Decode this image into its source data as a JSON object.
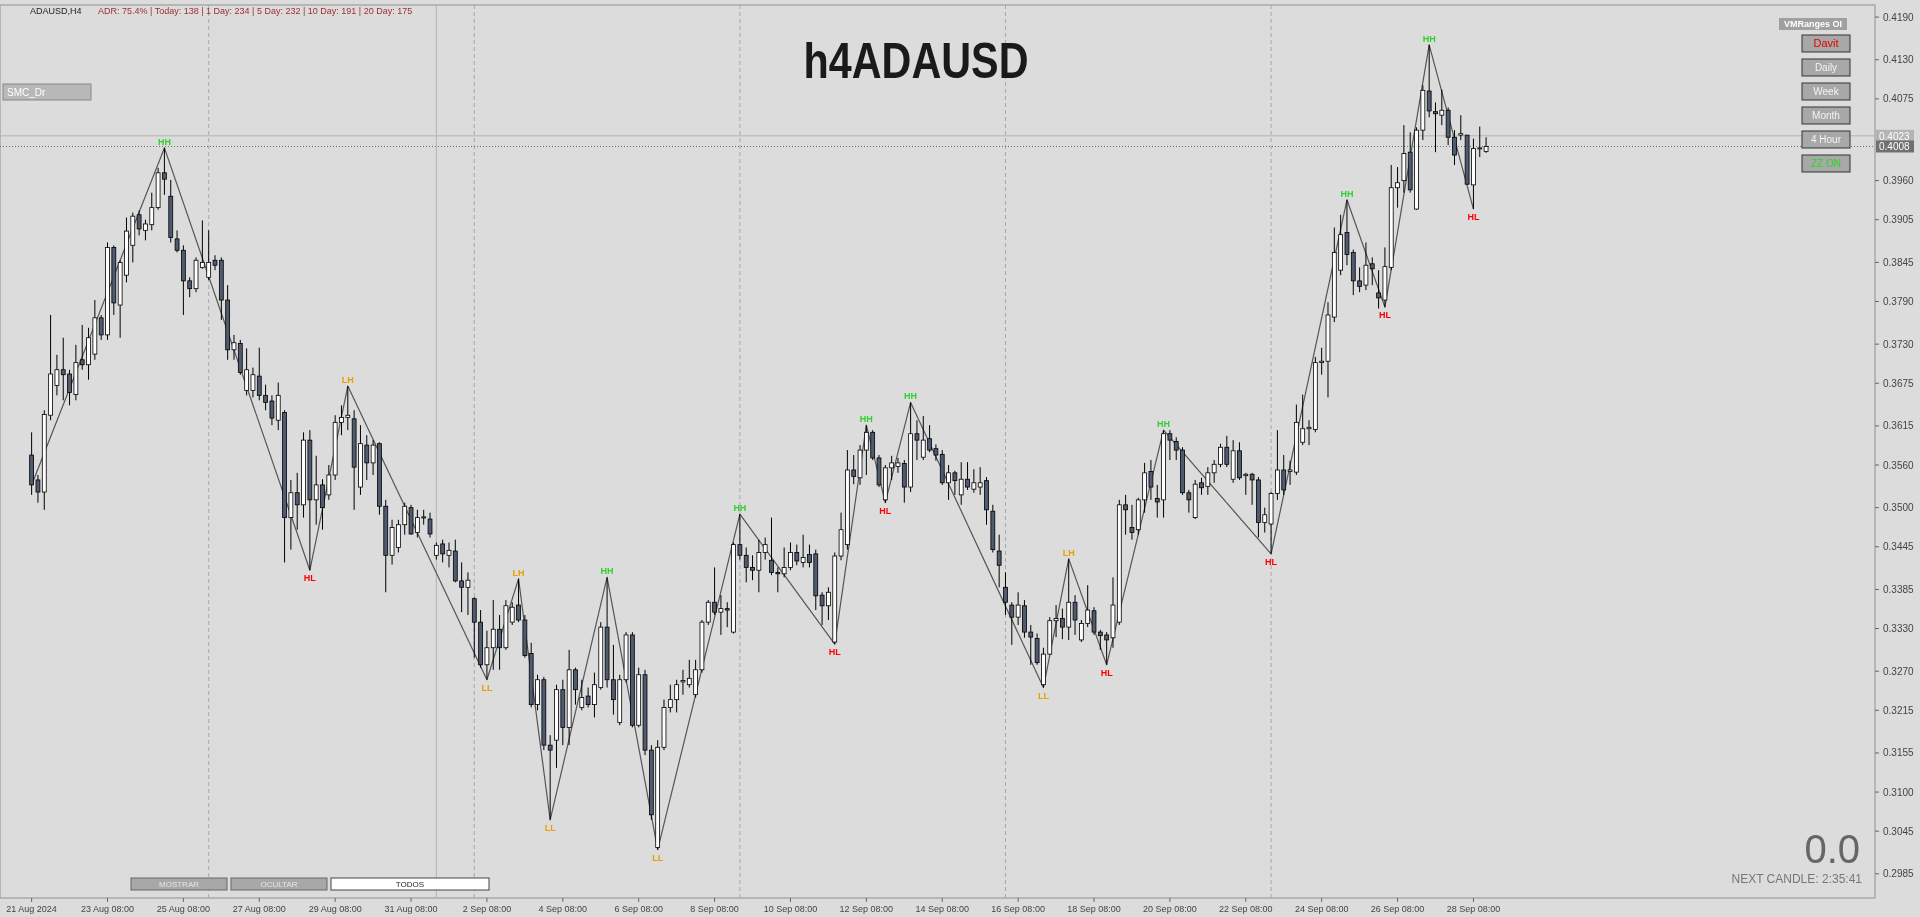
{
  "chart_data": {
    "type": "candlestick",
    "title": "h4ADAUSD",
    "x": [
      "2024-08-21T08:00",
      "2024-08-21T12:00",
      "2024-08-21T16:00",
      "2024-08-21T20:00",
      "2024-08-22T00:00",
      "2024-08-22T04:00",
      "2024-08-22T08:00",
      "2024-08-22T12:00",
      "2024-08-22T16:00",
      "2024-08-22T20:00",
      "2024-08-23T00:00",
      "2024-08-23T04:00",
      "2024-08-23T08:00",
      "2024-08-23T12:00",
      "2024-08-23T16:00",
      "2024-08-23T20:00",
      "2024-08-24T00:00",
      "2024-08-24T04:00",
      "2024-08-24T08:00",
      "2024-08-24T12:00",
      "2024-08-24T16:00",
      "2024-08-24T20:00",
      "2024-08-25T00:00",
      "2024-08-25T04:00",
      "2024-08-25T08:00",
      "2024-08-25T12:00",
      "2024-08-25T16:00",
      "2024-08-25T20:00",
      "2024-08-26T00:00",
      "2024-08-26T04:00",
      "2024-08-26T08:00",
      "2024-08-26T12:00",
      "2024-08-26T16:00",
      "2024-08-26T20:00",
      "2024-08-27T00:00",
      "2024-08-27T04:00",
      "2024-08-27T08:00",
      "2024-08-27T12:00",
      "2024-08-27T16:00",
      "2024-08-27T20:00",
      "2024-08-28T00:00",
      "2024-08-28T04:00",
      "2024-08-28T08:00",
      "2024-08-28T12:00",
      "2024-08-28T16:00",
      "2024-08-28T20:00",
      "2024-08-29T00:00",
      "2024-08-29T04:00",
      "2024-08-29T08:00",
      "2024-08-29T12:00",
      "2024-08-29T16:00",
      "2024-08-29T20:00",
      "2024-08-30T00:00",
      "2024-08-30T04:00",
      "2024-08-30T08:00",
      "2024-08-30T12:00",
      "2024-08-30T16:00",
      "2024-08-30T20:00",
      "2024-08-31T00:00",
      "2024-08-31T04:00",
      "2024-08-31T08:00",
      "2024-08-31T12:00",
      "2024-08-31T16:00",
      "2024-08-31T20:00",
      "2024-09-01T00:00",
      "2024-09-01T04:00",
      "2024-09-01T08:00",
      "2024-09-01T12:00",
      "2024-09-01T16:00",
      "2024-09-01T20:00",
      "2024-09-02T00:00",
      "2024-09-02T04:00",
      "2024-09-02T08:00",
      "2024-09-02T12:00",
      "2024-09-02T16:00",
      "2024-09-02T20:00",
      "2024-09-03T00:00",
      "2024-09-03T04:00",
      "2024-09-03T08:00",
      "2024-09-03T12:00",
      "2024-09-03T16:00",
      "2024-09-03T20:00",
      "2024-09-04T00:00",
      "2024-09-04T04:00",
      "2024-09-04T08:00",
      "2024-09-04T12:00",
      "2024-09-04T16:00",
      "2024-09-04T20:00",
      "2024-09-05T00:00",
      "2024-09-05T04:00",
      "2024-09-05T08:00",
      "2024-09-05T12:00",
      "2024-09-05T16:00",
      "2024-09-05T20:00",
      "2024-09-06T00:00",
      "2024-09-06T04:00",
      "2024-09-06T08:00",
      "2024-09-06T12:00",
      "2024-09-06T16:00",
      "2024-09-06T20:00",
      "2024-09-07T00:00",
      "2024-09-07T04:00",
      "2024-09-07T08:00",
      "2024-09-07T12:00",
      "2024-09-07T16:00",
      "2024-09-07T20:00",
      "2024-09-08T00:00",
      "2024-09-08T04:00",
      "2024-09-08T08:00",
      "2024-09-08T12:00",
      "2024-09-08T16:00",
      "2024-09-08T20:00",
      "2024-09-09T00:00",
      "2024-09-09T04:00",
      "2024-09-09T08:00",
      "2024-09-09T12:00",
      "2024-09-09T16:00",
      "2024-09-09T20:00",
      "2024-09-10T00:00",
      "2024-09-10T04:00",
      "2024-09-10T08:00",
      "2024-09-10T12:00",
      "2024-09-10T16:00",
      "2024-09-10T20:00",
      "2024-09-11T00:00",
      "2024-09-11T04:00",
      "2024-09-11T08:00",
      "2024-09-11T12:00",
      "2024-09-11T16:00",
      "2024-09-11T20:00",
      "2024-09-12T00:00",
      "2024-09-12T04:00",
      "2024-09-12T08:00",
      "2024-09-12T12:00",
      "2024-09-12T16:00",
      "2024-09-12T20:00",
      "2024-09-13T00:00",
      "2024-09-13T04:00",
      "2024-09-13T08:00",
      "2024-09-13T12:00",
      "2024-09-13T16:00",
      "2024-09-13T20:00",
      "2024-09-14T00:00",
      "2024-09-14T04:00",
      "2024-09-14T08:00",
      "2024-09-14T12:00",
      "2024-09-14T16:00",
      "2024-09-14T20:00",
      "2024-09-15T00:00",
      "2024-09-15T04:00",
      "2024-09-15T08:00",
      "2024-09-15T12:00",
      "2024-09-15T16:00",
      "2024-09-15T20:00",
      "2024-09-16T00:00",
      "2024-09-16T04:00",
      "2024-09-16T08:00",
      "2024-09-16T12:00",
      "2024-09-16T16:00",
      "2024-09-16T20:00",
      "2024-09-17T00:00",
      "2024-09-17T04:00",
      "2024-09-17T08:00",
      "2024-09-17T12:00",
      "2024-09-17T16:00",
      "2024-09-17T20:00",
      "2024-09-18T00:00",
      "2024-09-18T04:00",
      "2024-09-18T08:00",
      "2024-09-18T12:00",
      "2024-09-18T16:00",
      "2024-09-18T20:00",
      "2024-09-19T00:00",
      "2024-09-19T04:00",
      "2024-09-19T08:00",
      "2024-09-19T12:00",
      "2024-09-19T16:00",
      "2024-09-19T20:00",
      "2024-09-20T00:00",
      "2024-09-20T04:00",
      "2024-09-20T08:00",
      "2024-09-20T12:00",
      "2024-09-20T16:00",
      "2024-09-20T20:00",
      "2024-09-21T00:00",
      "2024-09-21T04:00",
      "2024-09-21T08:00",
      "2024-09-21T12:00",
      "2024-09-21T16:00",
      "2024-09-21T20:00",
      "2024-09-22T00:00",
      "2024-09-22T04:00",
      "2024-09-22T08:00",
      "2024-09-22T12:00",
      "2024-09-22T16:00",
      "2024-09-22T20:00",
      "2024-09-23T00:00",
      "2024-09-23T04:00",
      "2024-09-23T08:00",
      "2024-09-23T12:00",
      "2024-09-23T16:00",
      "2024-09-23T20:00",
      "2024-09-24T00:00",
      "2024-09-24T04:00",
      "2024-09-24T08:00",
      "2024-09-24T12:00",
      "2024-09-24T16:00",
      "2024-09-24T20:00",
      "2024-09-25T00:00",
      "2024-09-25T04:00",
      "2024-09-25T08:00",
      "2024-09-25T12:00",
      "2024-09-25T16:00",
      "2024-09-25T20:00",
      "2024-09-26T00:00",
      "2024-09-26T04:00",
      "2024-09-26T08:00",
      "2024-09-26T12:00",
      "2024-09-26T16:00",
      "2024-09-26T20:00",
      "2024-09-27T00:00",
      "2024-09-27T04:00",
      "2024-09-27T08:00",
      "2024-09-27T12:00",
      "2024-09-27T16:00",
      "2024-09-27T20:00",
      "2024-09-28T00:00",
      "2024-09-28T04:00",
      "2024-09-28T08:00",
      "2024-09-28T12:00",
      "2024-09-28T16:00"
    ],
    "ohlc": [
      [
        0.3574,
        0.3606,
        0.3518,
        0.3532
      ],
      [
        0.3539,
        0.3546,
        0.3507,
        0.3522
      ],
      [
        0.3522,
        0.3637,
        0.3497,
        0.3631
      ],
      [
        0.363,
        0.3771,
        0.3623,
        0.3688
      ],
      [
        0.3672,
        0.3715,
        0.3658,
        0.3694
      ],
      [
        0.3694,
        0.3739,
        0.3651,
        0.3687
      ],
      [
        0.3688,
        0.3694,
        0.3644,
        0.3662
      ],
      [
        0.3659,
        0.3729,
        0.3651,
        0.3704
      ],
      [
        0.3708,
        0.3757,
        0.3694,
        0.3701
      ],
      [
        0.3701,
        0.3753,
        0.368,
        0.3739
      ],
      [
        0.3716,
        0.3792,
        0.3708,
        0.3767
      ],
      [
        0.3767,
        0.3771,
        0.3736,
        0.3743
      ],
      [
        0.3743,
        0.3873,
        0.3736,
        0.3866
      ],
      [
        0.3866,
        0.3869,
        0.3771,
        0.3788
      ],
      [
        0.3785,
        0.3848,
        0.3739,
        0.3845
      ],
      [
        0.3827,
        0.3908,
        0.3817,
        0.3889
      ],
      [
        0.3869,
        0.3915,
        0.3845,
        0.391
      ],
      [
        0.3912,
        0.3918,
        0.3883,
        0.3892
      ],
      [
        0.389,
        0.3905,
        0.3876,
        0.3899
      ],
      [
        0.3898,
        0.3943,
        0.389,
        0.3922
      ],
      [
        0.3922,
        0.3978,
        0.3919,
        0.3971
      ],
      [
        0.3971,
        0.4006,
        0.394,
        0.3962
      ],
      [
        0.3938,
        0.3961,
        0.3873,
        0.388
      ],
      [
        0.3878,
        0.389,
        0.3859,
        0.3862
      ],
      [
        0.3862,
        0.3869,
        0.3771,
        0.3819
      ],
      [
        0.3819,
        0.3824,
        0.3796,
        0.3808
      ],
      [
        0.3808,
        0.3852,
        0.3803,
        0.3848
      ],
      [
        0.3838,
        0.3904,
        0.3836,
        0.3845
      ],
      [
        0.3824,
        0.389,
        0.382,
        0.3845
      ],
      [
        0.3848,
        0.3855,
        0.3834,
        0.3841
      ],
      [
        0.3848,
        0.3852,
        0.3764,
        0.3792
      ],
      [
        0.3792,
        0.3813,
        0.3708,
        0.3722
      ],
      [
        0.3722,
        0.3743,
        0.3708,
        0.3732
      ],
      [
        0.3731,
        0.3736,
        0.3687,
        0.369
      ],
      [
        0.3665,
        0.3724,
        0.3658,
        0.3694
      ],
      [
        0.3665,
        0.3697,
        0.3655,
        0.3687
      ],
      [
        0.3685,
        0.3725,
        0.3651,
        0.3658
      ],
      [
        0.3658,
        0.3673,
        0.3637,
        0.3648
      ],
      [
        0.365,
        0.3658,
        0.3616,
        0.3626
      ],
      [
        0.3623,
        0.3676,
        0.3609,
        0.3658
      ],
      [
        0.3634,
        0.3637,
        0.3423,
        0.3486
      ],
      [
        0.3486,
        0.3539,
        0.3441,
        0.3521
      ],
      [
        0.3521,
        0.3549,
        0.3469,
        0.3504
      ],
      [
        0.3504,
        0.3606,
        0.3486,
        0.3595
      ],
      [
        0.3595,
        0.3609,
        0.3412,
        0.3511
      ],
      [
        0.3511,
        0.3573,
        0.3476,
        0.3532
      ],
      [
        0.3532,
        0.354,
        0.3469,
        0.35
      ],
      [
        0.3518,
        0.356,
        0.3511,
        0.3546
      ],
      [
        0.3546,
        0.363,
        0.3539,
        0.362
      ],
      [
        0.362,
        0.3644,
        0.3602,
        0.3627
      ],
      [
        0.3627,
        0.3671,
        0.3609,
        0.363
      ],
      [
        0.3625,
        0.3637,
        0.3497,
        0.3557
      ],
      [
        0.3529,
        0.3616,
        0.3518,
        0.359
      ],
      [
        0.3588,
        0.3602,
        0.3539,
        0.3563
      ],
      [
        0.3563,
        0.3595,
        0.3546,
        0.3588
      ],
      [
        0.359,
        0.3592,
        0.349,
        0.3502
      ],
      [
        0.3502,
        0.3511,
        0.3381,
        0.3433
      ],
      [
        0.3433,
        0.3483,
        0.342,
        0.3472
      ],
      [
        0.3444,
        0.3483,
        0.3437,
        0.3476
      ],
      [
        0.3476,
        0.3507,
        0.3462,
        0.3502
      ],
      [
        0.35,
        0.3504,
        0.3462,
        0.3463
      ],
      [
        0.3465,
        0.3497,
        0.3458,
        0.3486
      ],
      [
        0.3486,
        0.3497,
        0.3476,
        0.3487
      ],
      [
        0.3484,
        0.3493,
        0.3458,
        0.3463
      ],
      [
        0.3433,
        0.3451,
        0.3427,
        0.3447
      ],
      [
        0.3449,
        0.3455,
        0.3423,
        0.3435
      ],
      [
        0.3433,
        0.3451,
        0.3416,
        0.344
      ],
      [
        0.3439,
        0.3455,
        0.3395,
        0.3397
      ],
      [
        0.3397,
        0.3423,
        0.3353,
        0.3388
      ],
      [
        0.3388,
        0.3409,
        0.3349,
        0.3398
      ],
      [
        0.3372,
        0.3374,
        0.3289,
        0.3339
      ],
      [
        0.3339,
        0.3356,
        0.3275,
        0.3279
      ],
      [
        0.3279,
        0.3327,
        0.3258,
        0.3303
      ],
      [
        0.3303,
        0.337,
        0.3272,
        0.3329
      ],
      [
        0.3329,
        0.3349,
        0.3272,
        0.3303
      ],
      [
        0.3303,
        0.337,
        0.33,
        0.3362
      ],
      [
        0.3339,
        0.3367,
        0.3335,
        0.336
      ],
      [
        0.3363,
        0.34,
        0.3339,
        0.3342
      ],
      [
        0.3342,
        0.3349,
        0.3289,
        0.3292
      ],
      [
        0.3295,
        0.331,
        0.3219,
        0.3223
      ],
      [
        0.3223,
        0.3265,
        0.3215,
        0.3258
      ],
      [
        0.3258,
        0.3262,
        0.3159,
        0.3166
      ],
      [
        0.3166,
        0.318,
        0.3061,
        0.3159
      ],
      [
        0.3173,
        0.3251,
        0.3134,
        0.3244
      ],
      [
        0.3244,
        0.3258,
        0.3166,
        0.3191
      ],
      [
        0.3191,
        0.33,
        0.3166,
        0.3272
      ],
      [
        0.3272,
        0.3275,
        0.3223,
        0.3244
      ],
      [
        0.3219,
        0.3258,
        0.3215,
        0.3233
      ],
      [
        0.3235,
        0.3247,
        0.3219,
        0.3223
      ],
      [
        0.3223,
        0.3268,
        0.3205,
        0.3251
      ],
      [
        0.3247,
        0.3339,
        0.3244,
        0.3332
      ],
      [
        0.3332,
        0.3402,
        0.3247,
        0.3258
      ],
      [
        0.3258,
        0.3307,
        0.3209,
        0.323
      ],
      [
        0.3198,
        0.3265,
        0.3194,
        0.3258
      ],
      [
        0.3258,
        0.3325,
        0.3254,
        0.3321
      ],
      [
        0.3321,
        0.3325,
        0.3191,
        0.3194
      ],
      [
        0.3194,
        0.3275,
        0.3191,
        0.3265
      ],
      [
        0.3265,
        0.3272,
        0.3152,
        0.3159
      ],
      [
        0.3159,
        0.3166,
        0.3061,
        0.3068
      ],
      [
        0.3022,
        0.3173,
        0.3019,
        0.3163
      ],
      [
        0.3163,
        0.323,
        0.3159,
        0.3219
      ],
      [
        0.3219,
        0.3251,
        0.3212,
        0.323
      ],
      [
        0.323,
        0.3258,
        0.3212,
        0.3251
      ],
      [
        0.3255,
        0.3272,
        0.3237,
        0.3257
      ],
      [
        0.3251,
        0.3286,
        0.3247,
        0.326
      ],
      [
        0.3237,
        0.3286,
        0.3233,
        0.3272
      ],
      [
        0.3272,
        0.3342,
        0.3268,
        0.3339
      ],
      [
        0.3339,
        0.337,
        0.3335,
        0.3367
      ],
      [
        0.3367,
        0.3416,
        0.3349,
        0.3353
      ],
      [
        0.3353,
        0.3377,
        0.3321,
        0.3358
      ],
      [
        0.3358,
        0.3367,
        0.3332,
        0.3356
      ],
      [
        0.3325,
        0.3451,
        0.3323,
        0.3448
      ],
      [
        0.3448,
        0.3491,
        0.3427,
        0.3433
      ],
      [
        0.3433,
        0.3444,
        0.3395,
        0.3416
      ],
      [
        0.3416,
        0.3433,
        0.3398,
        0.3412
      ],
      [
        0.3412,
        0.3455,
        0.3381,
        0.3437
      ],
      [
        0.3437,
        0.3458,
        0.3427,
        0.3448
      ],
      [
        0.3426,
        0.3486,
        0.3405,
        0.3409
      ],
      [
        0.3409,
        0.3416,
        0.3381,
        0.3407
      ],
      [
        0.3407,
        0.3444,
        0.3402,
        0.3416
      ],
      [
        0.3416,
        0.3451,
        0.3412,
        0.3437
      ],
      [
        0.3437,
        0.3448,
        0.3419,
        0.3425
      ],
      [
        0.3423,
        0.3462,
        0.3416,
        0.343
      ],
      [
        0.3434,
        0.3448,
        0.3416,
        0.3423
      ],
      [
        0.3435,
        0.3441,
        0.3356,
        0.3376
      ],
      [
        0.3377,
        0.3381,
        0.3335,
        0.3362
      ],
      [
        0.3362,
        0.3388,
        0.3342,
        0.3381
      ],
      [
        0.3311,
        0.3437,
        0.3308,
        0.3432
      ],
      [
        0.3432,
        0.3493,
        0.3426,
        0.3469
      ],
      [
        0.3448,
        0.3581,
        0.3441,
        0.3553
      ],
      [
        0.3553,
        0.3574,
        0.3533,
        0.3544
      ],
      [
        0.3542,
        0.3588,
        0.3532,
        0.3581
      ],
      [
        0.3581,
        0.3616,
        0.3546,
        0.3606
      ],
      [
        0.3606,
        0.3609,
        0.3567,
        0.357
      ],
      [
        0.357,
        0.3574,
        0.3529,
        0.3532
      ],
      [
        0.3511,
        0.356,
        0.3507,
        0.3556
      ],
      [
        0.3556,
        0.3573,
        0.3539,
        0.3563
      ],
      [
        0.3558,
        0.357,
        0.3549,
        0.3563
      ],
      [
        0.3562,
        0.3567,
        0.3507,
        0.3529
      ],
      [
        0.3529,
        0.3648,
        0.3522,
        0.3604
      ],
      [
        0.3604,
        0.3623,
        0.3567,
        0.3595
      ],
      [
        0.3571,
        0.3629,
        0.3567,
        0.3595
      ],
      [
        0.3597,
        0.3616,
        0.3578,
        0.3581
      ],
      [
        0.3583,
        0.3589,
        0.3566,
        0.3574
      ],
      [
        0.3575,
        0.3581,
        0.3532,
        0.3535
      ],
      [
        0.3535,
        0.356,
        0.3511,
        0.3549
      ],
      [
        0.3549,
        0.3552,
        0.3518,
        0.3538
      ],
      [
        0.3518,
        0.3564,
        0.3504,
        0.354
      ],
      [
        0.354,
        0.3564,
        0.3525,
        0.3529
      ],
      [
        0.3526,
        0.3554,
        0.3521,
        0.3535
      ],
      [
        0.3529,
        0.3557,
        0.3518,
        0.3535
      ],
      [
        0.3538,
        0.3543,
        0.3476,
        0.3497
      ],
      [
        0.3495,
        0.3504,
        0.3437,
        0.3441
      ],
      [
        0.3439,
        0.3462,
        0.3388,
        0.3419
      ],
      [
        0.3388,
        0.3409,
        0.3349,
        0.3367
      ],
      [
        0.3363,
        0.3367,
        0.3307,
        0.3346
      ],
      [
        0.3346,
        0.3381,
        0.3335,
        0.3363
      ],
      [
        0.3362,
        0.337,
        0.3317,
        0.3325
      ],
      [
        0.3325,
        0.3335,
        0.3279,
        0.3318
      ],
      [
        0.3316,
        0.3323,
        0.3279,
        0.3282
      ],
      [
        0.3251,
        0.3303,
        0.3247,
        0.3294
      ],
      [
        0.3294,
        0.3346,
        0.3293,
        0.3341
      ],
      [
        0.3341,
        0.3363,
        0.3318,
        0.3344
      ],
      [
        0.3344,
        0.3358,
        0.3315,
        0.3332
      ],
      [
        0.3332,
        0.3428,
        0.3314,
        0.3367
      ],
      [
        0.3367,
        0.3377,
        0.3321,
        0.3342
      ],
      [
        0.3314,
        0.3342,
        0.3311,
        0.3337
      ],
      [
        0.3337,
        0.3391,
        0.3332,
        0.3356
      ],
      [
        0.3355,
        0.336,
        0.3321,
        0.3325
      ],
      [
        0.3325,
        0.3328,
        0.33,
        0.332
      ],
      [
        0.3321,
        0.3325,
        0.3279,
        0.3314
      ],
      [
        0.3317,
        0.3402,
        0.3303,
        0.3363
      ],
      [
        0.3339,
        0.3511,
        0.3335,
        0.3504
      ],
      [
        0.3504,
        0.3518,
        0.3462,
        0.3497
      ],
      [
        0.3472,
        0.3504,
        0.3455,
        0.3465
      ],
      [
        0.3469,
        0.3514,
        0.3462,
        0.3511
      ],
      [
        0.3511,
        0.3563,
        0.3493,
        0.3549
      ],
      [
        0.3551,
        0.3567,
        0.3511,
        0.3529
      ],
      [
        0.3513,
        0.3532,
        0.3486,
        0.3508
      ],
      [
        0.3511,
        0.3609,
        0.3486,
        0.3604
      ],
      [
        0.3604,
        0.3609,
        0.3567,
        0.3595
      ],
      [
        0.3593,
        0.3599,
        0.3567,
        0.3581
      ],
      [
        0.3581,
        0.3585,
        0.3518,
        0.3521
      ],
      [
        0.3521,
        0.3525,
        0.3493,
        0.3511
      ],
      [
        0.3486,
        0.3539,
        0.3484,
        0.3533
      ],
      [
        0.3535,
        0.3542,
        0.3518,
        0.3528
      ],
      [
        0.353,
        0.3557,
        0.3518,
        0.3549
      ],
      [
        0.3549,
        0.3567,
        0.3535,
        0.3561
      ],
      [
        0.3561,
        0.359,
        0.3557,
        0.3585
      ],
      [
        0.3585,
        0.3601,
        0.3557,
        0.3561
      ],
      [
        0.354,
        0.3595,
        0.3535,
        0.358
      ],
      [
        0.358,
        0.3592,
        0.3539,
        0.3542
      ],
      [
        0.3545,
        0.3549,
        0.3518,
        0.3547
      ],
      [
        0.3547,
        0.3549,
        0.3504,
        0.3539
      ],
      [
        0.3539,
        0.3543,
        0.3458,
        0.3479
      ],
      [
        0.3479,
        0.35,
        0.3465,
        0.349
      ],
      [
        0.3477,
        0.3522,
        0.3435,
        0.352
      ],
      [
        0.352,
        0.3609,
        0.3511,
        0.3553
      ],
      [
        0.3553,
        0.3574,
        0.3518,
        0.3525
      ],
      [
        0.3551,
        0.3566,
        0.3532,
        0.3553
      ],
      [
        0.355,
        0.3645,
        0.3546,
        0.362
      ],
      [
        0.3592,
        0.3659,
        0.3588,
        0.3611
      ],
      [
        0.3611,
        0.3623,
        0.3588,
        0.3613
      ],
      [
        0.361,
        0.3712,
        0.3606,
        0.3704
      ],
      [
        0.3704,
        0.3725,
        0.3687,
        0.3706
      ],
      [
        0.3706,
        0.3789,
        0.3655,
        0.3771
      ],
      [
        0.3768,
        0.3894,
        0.3761,
        0.3859
      ],
      [
        0.3834,
        0.3912,
        0.3827,
        0.3884
      ],
      [
        0.3887,
        0.3933,
        0.3841,
        0.3856
      ],
      [
        0.3859,
        0.3863,
        0.3799,
        0.3819
      ],
      [
        0.3819,
        0.3838,
        0.3803,
        0.3811
      ],
      [
        0.3813,
        0.3873,
        0.3806,
        0.3841
      ],
      [
        0.3843,
        0.3852,
        0.3813,
        0.3836
      ],
      [
        0.3802,
        0.3834,
        0.378,
        0.3795
      ],
      [
        0.3792,
        0.3866,
        0.3782,
        0.3839
      ],
      [
        0.3838,
        0.3982,
        0.3834,
        0.395
      ],
      [
        0.395,
        0.3979,
        0.3922,
        0.3957
      ],
      [
        0.396,
        0.4038,
        0.3943,
        0.3998
      ],
      [
        0.4,
        0.4028,
        0.3943,
        0.3947
      ],
      [
        0.392,
        0.4035,
        0.3919,
        0.4031
      ],
      [
        0.4031,
        0.4094,
        0.4017,
        0.4087
      ],
      [
        0.4086,
        0.4151,
        0.4049,
        0.4058
      ],
      [
        0.4057,
        0.407,
        0.4,
        0.4054
      ],
      [
        0.4052,
        0.4088,
        0.4038,
        0.4059
      ],
      [
        0.4059,
        0.4063,
        0.401,
        0.4021
      ],
      [
        0.4021,
        0.4031,
        0.3982,
        0.3996
      ],
      [
        0.4024,
        0.4052,
        0.4017,
        0.4026
      ],
      [
        0.4024,
        0.4024,
        0.3954,
        0.3955
      ],
      [
        0.3954,
        0.4019,
        0.392,
        0.4005
      ],
      [
        0.4005,
        0.4036,
        0.3993,
        0.4006
      ],
      [
        0.4001,
        0.4021,
        0.3999,
        0.4008
      ]
    ],
    "series": [
      {
        "type": "line",
        "color": "#555555",
        "x": [
          "2024-08-21T08:00",
          "2024-08-24T20:00",
          "2024-08-28T16:00",
          "2024-08-29T16:00",
          "2024-09-02T08:00",
          "2024-09-03T04:00",
          "2024-09-04T00:00",
          "2024-09-05T12:00",
          "2024-09-06T20:00",
          "2024-09-09T00:00",
          "2024-09-11T12:00",
          "2024-09-12T08:00",
          "2024-09-12T20:00",
          "2024-09-13T12:00",
          "2024-09-17T00:00",
          "2024-09-17T16:00",
          "2024-09-18T16:00",
          "2024-09-20T04:00",
          "2024-09-23T00:00",
          "2024-09-25T00:00",
          "2024-09-26T00:00",
          "2024-09-27T04:00",
          "2024-09-28T08:00"
        ],
        "values": [
          0.3532,
          0.4006,
          0.3412,
          0.3671,
          0.3258,
          0.34,
          0.3061,
          0.3402,
          0.3019,
          0.3491,
          0.3308,
          0.3616,
          0.3507,
          0.3648,
          0.3247,
          0.3428,
          0.3279,
          0.3609,
          0.3435,
          0.3933,
          0.3782,
          0.4151,
          0.392
        ]
      }
    ],
    "xlim": [
      "2024-08-20T12:00",
      "2024-10-08T22:00"
    ],
    "xticks": [
      {
        "value": "2024-08-21T08:00",
        "label": "21 Aug 2024"
      },
      {
        "value": "2024-08-23T08:00",
        "label": "23 Aug 08:00"
      },
      {
        "value": "2024-08-25T08:00",
        "label": "25 Aug 08:00"
      },
      {
        "value": "2024-08-27T08:00",
        "label": "27 Aug 08:00"
      },
      {
        "value": "2024-08-29T08:00",
        "label": "29 Aug 08:00"
      },
      {
        "value": "2024-08-31T08:00",
        "label": "31 Aug 08:00"
      },
      {
        "value": "2024-09-02T08:00",
        "label": "2 Sep 08:00"
      },
      {
        "value": "2024-09-04T08:00",
        "label": "4 Sep 08:00"
      },
      {
        "value": "2024-09-06T08:00",
        "label": "6 Sep 08:00"
      },
      {
        "value": "2024-09-08T08:00",
        "label": "8 Sep 08:00"
      },
      {
        "value": "2024-09-10T08:00",
        "label": "10 Sep 08:00"
      },
      {
        "value": "2024-09-12T08:00",
        "label": "12 Sep 08:00"
      },
      {
        "value": "2024-09-14T08:00",
        "label": "14 Sep 08:00"
      },
      {
        "value": "2024-09-16T08:00",
        "label": "16 Sep 08:00"
      },
      {
        "value": "2024-09-18T08:00",
        "label": "18 Sep 08:00"
      },
      {
        "value": "2024-09-20T08:00",
        "label": "20 Sep 08:00"
      },
      {
        "value": "2024-09-22T08:00",
        "label": "22 Sep 08:00"
      },
      {
        "value": "2024-09-24T08:00",
        "label": "24 Sep 08:00"
      },
      {
        "value": "2024-09-26T08:00",
        "label": "26 Sep 08:00"
      },
      {
        "value": "2024-09-28T08:00",
        "label": "28 Sep 08:00"
      }
    ],
    "ylim": [
      0.2951,
      0.4207
    ],
    "yticks": [
      {
        "value": 0.419,
        "label": "0.4190"
      },
      {
        "value": 0.413,
        "label": "0.4130"
      },
      0.4075,
      {
        "value": 0.396,
        "label": "0.3960"
      },
      0.3905,
      0.3845,
      {
        "value": 0.379,
        "label": "0.3790"
      },
      {
        "value": 0.373,
        "label": "0.3730"
      },
      0.3675,
      0.3615,
      {
        "value": 0.356,
        "label": "0.3560"
      },
      {
        "value": 0.35,
        "label": "0.3500"
      },
      0.3445,
      0.3385,
      {
        "value": 0.333,
        "label": "0.3330"
      },
      {
        "value": 0.327,
        "label": "0.3270"
      },
      0.3215,
      0.3155,
      {
        "value": 0.31,
        "label": "0.3100"
      },
      0.3045,
      0.2985
    ],
    "ref_lines": [
      {
        "axis": "x",
        "value": "2024-08-26T00:00",
        "line_style": "dashed",
        "color": "#a8a8a8"
      },
      {
        "axis": "x",
        "value": "2024-09-01T00:00",
        "line_style": "solid",
        "color": "#b4b4b4"
      },
      {
        "axis": "x",
        "value": "2024-09-02T00:00",
        "line_style": "dashed",
        "color": "#a8a8a8"
      },
      {
        "axis": "x",
        "value": "2024-09-09T00:00",
        "line_style": "dashed",
        "color": "#a8a8a8"
      },
      {
        "axis": "x",
        "value": "2024-09-16T00:00",
        "line_style": "dashed",
        "color": "#a8a8a8"
      },
      {
        "axis": "x",
        "value": "2024-09-23T00:00",
        "line_style": "dashed",
        "color": "#a8a8a8"
      },
      {
        "axis": "y",
        "value": 0.4023,
        "label": "0.4023",
        "line_style": "solid",
        "color": "#b4b4b4"
      },
      {
        "axis": "y",
        "value": 0.4008,
        "label": "0.4008",
        "line_style": "dotted",
        "color": "#707070"
      }
    ],
    "annotations": [
      "ADAUSD,H4",
      "ADR: 75.4% | Today: 138 | 1 Day: 234 | 5 Day: 232 | 10 Day: 191 | 20 Day: 175",
      "SMC_Dr",
      "MOSTRAR",
      "OCULTAR",
      "TODOS",
      "VMRanges OI",
      "Davit",
      "Daily",
      "Week",
      "Month",
      "4 Hour",
      "ZZ ON",
      "0.0",
      "NEXT CANDLE: 2:35:41",
      {
        "text": "HH",
        "x": "2024-08-24T20:00",
        "y": 0.4006
      },
      {
        "text": "HL",
        "x": "2024-08-28T16:00",
        "y": 0.3412
      },
      {
        "text": "LH",
        "x": "2024-08-29T16:00",
        "y": 0.3671
      },
      {
        "text": "LL",
        "x": "2024-09-02T08:00",
        "y": 0.3258
      },
      {
        "text": "LH",
        "x": "2024-09-03T04:00",
        "y": 0.34
      },
      {
        "text": "LL",
        "x": "2024-09-04T00:00",
        "y": 0.3061
      },
      {
        "text": "HH",
        "x": "2024-09-05T12:00",
        "y": 0.3402
      },
      {
        "text": "LL",
        "x": "2024-09-06T20:00",
        "y": 0.3019
      },
      {
        "text": "HH",
        "x": "2024-09-09T00:00",
        "y": 0.3491
      },
      {
        "text": "HL",
        "x": "2024-09-11T12:00",
        "y": 0.3308
      },
      {
        "text": "HH",
        "x": "2024-09-12T08:00",
        "y": 0.3616
      },
      {
        "text": "HL",
        "x": "2024-09-12T20:00",
        "y": 0.3507
      },
      {
        "text": "HH",
        "x": "2024-09-13T12:00",
        "y": 0.3648
      },
      {
        "text": "LL",
        "x": "2024-09-17T00:00",
        "y": 0.3247
      },
      {
        "text": "LH",
        "x": "2024-09-17T16:00",
        "y": 0.3428
      },
      {
        "text": "HL",
        "x": "2024-09-18T16:00",
        "y": 0.3279
      },
      {
        "text": "HH",
        "x": "2024-09-20T04:00",
        "y": 0.3609
      },
      {
        "text": "HL",
        "x": "2024-09-23T00:00",
        "y": 0.3435
      },
      {
        "text": "HH",
        "x": "2024-09-25T00:00",
        "y": 0.3933
      },
      {
        "text": "HL",
        "x": "2024-09-26T00:00",
        "y": 0.3782
      },
      {
        "text": "HH",
        "x": "2024-09-27T04:00",
        "y": 0.4151
      },
      {
        "text": "HL",
        "x": "2024-09-28T08:00",
        "y": 0.392
      }
    ]
  }
}
